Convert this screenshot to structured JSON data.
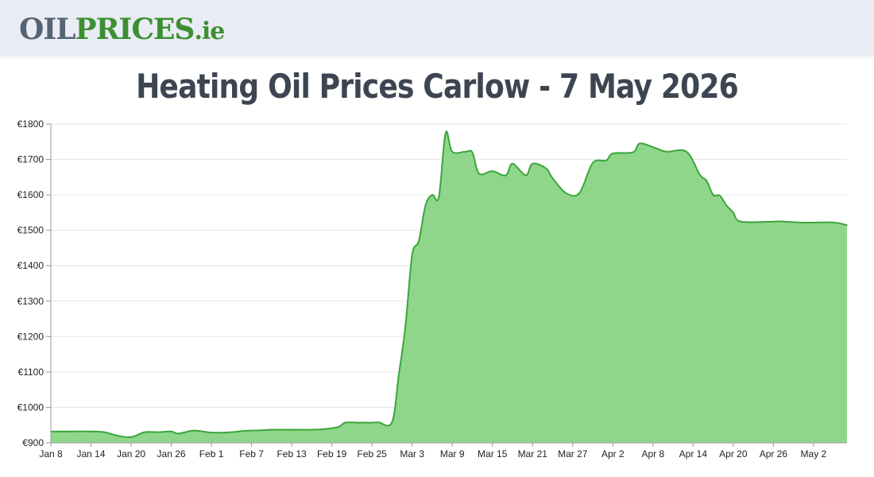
{
  "header": {
    "logo_part1": "OIL",
    "logo_part2": "PRICES",
    "logo_part3": ".ie"
  },
  "colors": {
    "line": "#3ba53a",
    "fill": "#8fd68b",
    "grid": "#e6e6e6"
  },
  "chart_data": {
    "type": "area",
    "title": "Heating Oil Prices Carlow - 7 May 2026",
    "xlabel": "",
    "ylabel": "",
    "ylim": [
      900,
      1800
    ],
    "grid": true,
    "yticks": [
      900,
      1000,
      1100,
      1200,
      1300,
      1400,
      1500,
      1600,
      1700,
      1800
    ],
    "ytick_labels": [
      "€900",
      "€1000",
      "€1100",
      "€1200",
      "€1300",
      "€1400",
      "€1500",
      "€1600",
      "€1700",
      "€1800"
    ],
    "xticks": [
      "2026-01-08",
      "2026-01-14",
      "2026-01-20",
      "2026-01-26",
      "2026-02-01",
      "2026-02-07",
      "2026-02-13",
      "2026-02-19",
      "2026-02-25",
      "2026-03-03",
      "2026-03-09",
      "2026-03-15",
      "2026-03-21",
      "2026-03-27",
      "2026-04-02",
      "2026-04-08",
      "2026-04-14",
      "2026-04-20",
      "2026-04-26",
      "2026-05-02"
    ],
    "xtick_labels": [
      "Jan 8",
      "Jan 14",
      "Jan 20",
      "Jan 26",
      "Feb 1",
      "Feb 7",
      "Feb 13",
      "Feb 19",
      "Feb 25",
      "Mar 3",
      "Mar 9",
      "Mar 15",
      "Mar 21",
      "Mar 27",
      "Apr 2",
      "Apr 8",
      "Apr 14",
      "Apr 20",
      "Apr 26",
      "May 2"
    ],
    "series": [
      {
        "points": [
          [
            "2026-01-08",
            932
          ],
          [
            "2026-01-11",
            932
          ],
          [
            "2026-01-14",
            932
          ],
          [
            "2026-01-16",
            930
          ],
          [
            "2026-01-18",
            920
          ],
          [
            "2026-01-20",
            916
          ],
          [
            "2026-01-22",
            930
          ],
          [
            "2026-01-24",
            930
          ],
          [
            "2026-01-26",
            932
          ],
          [
            "2026-01-27",
            926
          ],
          [
            "2026-01-29",
            934
          ],
          [
            "2026-01-30",
            934
          ],
          [
            "2026-02-01",
            929
          ],
          [
            "2026-02-04",
            930
          ],
          [
            "2026-02-06",
            934
          ],
          [
            "2026-02-08",
            935
          ],
          [
            "2026-02-10",
            937
          ],
          [
            "2026-02-13",
            937
          ],
          [
            "2026-02-16",
            937
          ],
          [
            "2026-02-18",
            939
          ],
          [
            "2026-02-20",
            945
          ],
          [
            "2026-02-21",
            957
          ],
          [
            "2026-02-23",
            957
          ],
          [
            "2026-02-25",
            957
          ],
          [
            "2026-02-26",
            958
          ],
          [
            "2026-02-28",
            958
          ],
          [
            "2026-03-01",
            1090
          ],
          [
            "2026-03-02",
            1230
          ],
          [
            "2026-03-03",
            1430
          ],
          [
            "2026-03-04",
            1470
          ],
          [
            "2026-03-05",
            1570
          ],
          [
            "2026-03-06",
            1600
          ],
          [
            "2026-03-07",
            1595
          ],
          [
            "2026-03-08",
            1775
          ],
          [
            "2026-03-09",
            1722
          ],
          [
            "2026-03-11",
            1722
          ],
          [
            "2026-03-12",
            1720
          ],
          [
            "2026-03-13",
            1660
          ],
          [
            "2026-03-15",
            1667
          ],
          [
            "2026-03-17",
            1655
          ],
          [
            "2026-03-18",
            1688
          ],
          [
            "2026-03-20",
            1655
          ],
          [
            "2026-03-21",
            1688
          ],
          [
            "2026-03-23",
            1675
          ],
          [
            "2026-03-24",
            1647
          ],
          [
            "2026-03-26",
            1605
          ],
          [
            "2026-03-28",
            1605
          ],
          [
            "2026-03-30",
            1690
          ],
          [
            "2026-04-01",
            1697
          ],
          [
            "2026-04-02",
            1717
          ],
          [
            "2026-04-05",
            1720
          ],
          [
            "2026-04-06",
            1745
          ],
          [
            "2026-04-08",
            1735
          ],
          [
            "2026-04-10",
            1722
          ],
          [
            "2026-04-13",
            1722
          ],
          [
            "2026-04-15",
            1657
          ],
          [
            "2026-04-16",
            1640
          ],
          [
            "2026-04-17",
            1600
          ],
          [
            "2026-04-18",
            1598
          ],
          [
            "2026-04-19",
            1570
          ],
          [
            "2026-04-20",
            1550
          ],
          [
            "2026-04-21",
            1525
          ],
          [
            "2026-04-25",
            1524
          ],
          [
            "2026-04-27",
            1525
          ],
          [
            "2026-04-30",
            1522
          ],
          [
            "2026-05-02",
            1522
          ],
          [
            "2026-05-05",
            1522
          ],
          [
            "2026-05-07",
            1515
          ]
        ]
      }
    ]
  }
}
